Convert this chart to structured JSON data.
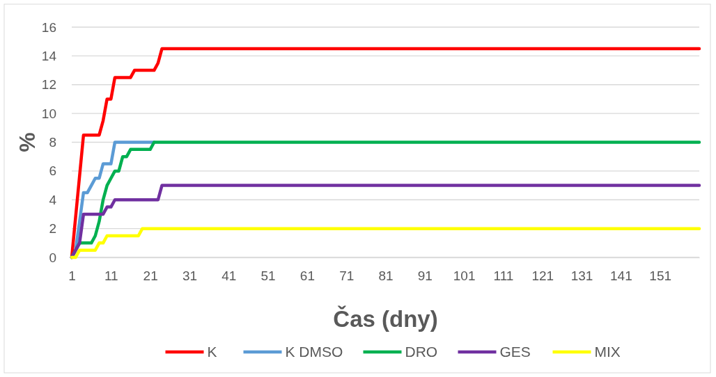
{
  "chart_data": {
    "type": "line",
    "xlabel": "Čas (dny)",
    "ylabel": "%",
    "xlim": [
      1,
      161
    ],
    "xticks": [
      1,
      11,
      21,
      31,
      41,
      51,
      61,
      71,
      81,
      91,
      101,
      111,
      121,
      131,
      141,
      151
    ],
    "ylim": [
      0,
      16
    ],
    "yticks": [
      0,
      2,
      4,
      6,
      8,
      10,
      12,
      14,
      16
    ],
    "grid": "y",
    "legend": "bottom",
    "marker": "none",
    "line_style": "solid",
    "series": [
      {
        "name": "K",
        "color": "#ff0000",
        "x": [
          1,
          4,
          8,
          9,
          10,
          11,
          12,
          16,
          17,
          22,
          23,
          24,
          161
        ],
        "values": [
          0,
          8.5,
          8.5,
          9.5,
          11,
          11,
          12.5,
          12.5,
          13,
          13,
          13.5,
          14.5,
          14.5
        ]
      },
      {
        "name": "K DMSO",
        "color": "#5b9bd5",
        "x": [
          1,
          2,
          3,
          4,
          5,
          6,
          7,
          8,
          9,
          11,
          12,
          22
        ],
        "values": [
          0,
          0.5,
          2.5,
          4.5,
          4.5,
          5,
          5.5,
          5.5,
          6.5,
          6.5,
          8,
          8
        ]
      },
      {
        "name": "DRO",
        "color": "#00b050",
        "x": [
          1,
          2,
          3,
          6,
          7,
          8,
          9,
          10,
          11,
          12,
          13,
          14,
          15,
          16,
          21,
          22,
          161
        ],
        "values": [
          0,
          0.5,
          1,
          1,
          1.5,
          2.5,
          4,
          5,
          5.5,
          6,
          6,
          7,
          7,
          7.5,
          7.5,
          8,
          8
        ]
      },
      {
        "name": "GES",
        "color": "#7030a0",
        "x": [
          1,
          2,
          3,
          4,
          9,
          10,
          11,
          12,
          23,
          24,
          161
        ],
        "values": [
          0,
          0.5,
          1,
          3,
          3,
          3.5,
          3.5,
          4,
          4,
          5,
          5
        ]
      },
      {
        "name": "MIX",
        "color": "#ffff00",
        "x": [
          1,
          2,
          3,
          7,
          8,
          9,
          10,
          18,
          19,
          161
        ],
        "values": [
          0,
          0,
          0.5,
          0.5,
          1,
          1,
          1.5,
          1.5,
          2,
          2
        ]
      }
    ]
  }
}
